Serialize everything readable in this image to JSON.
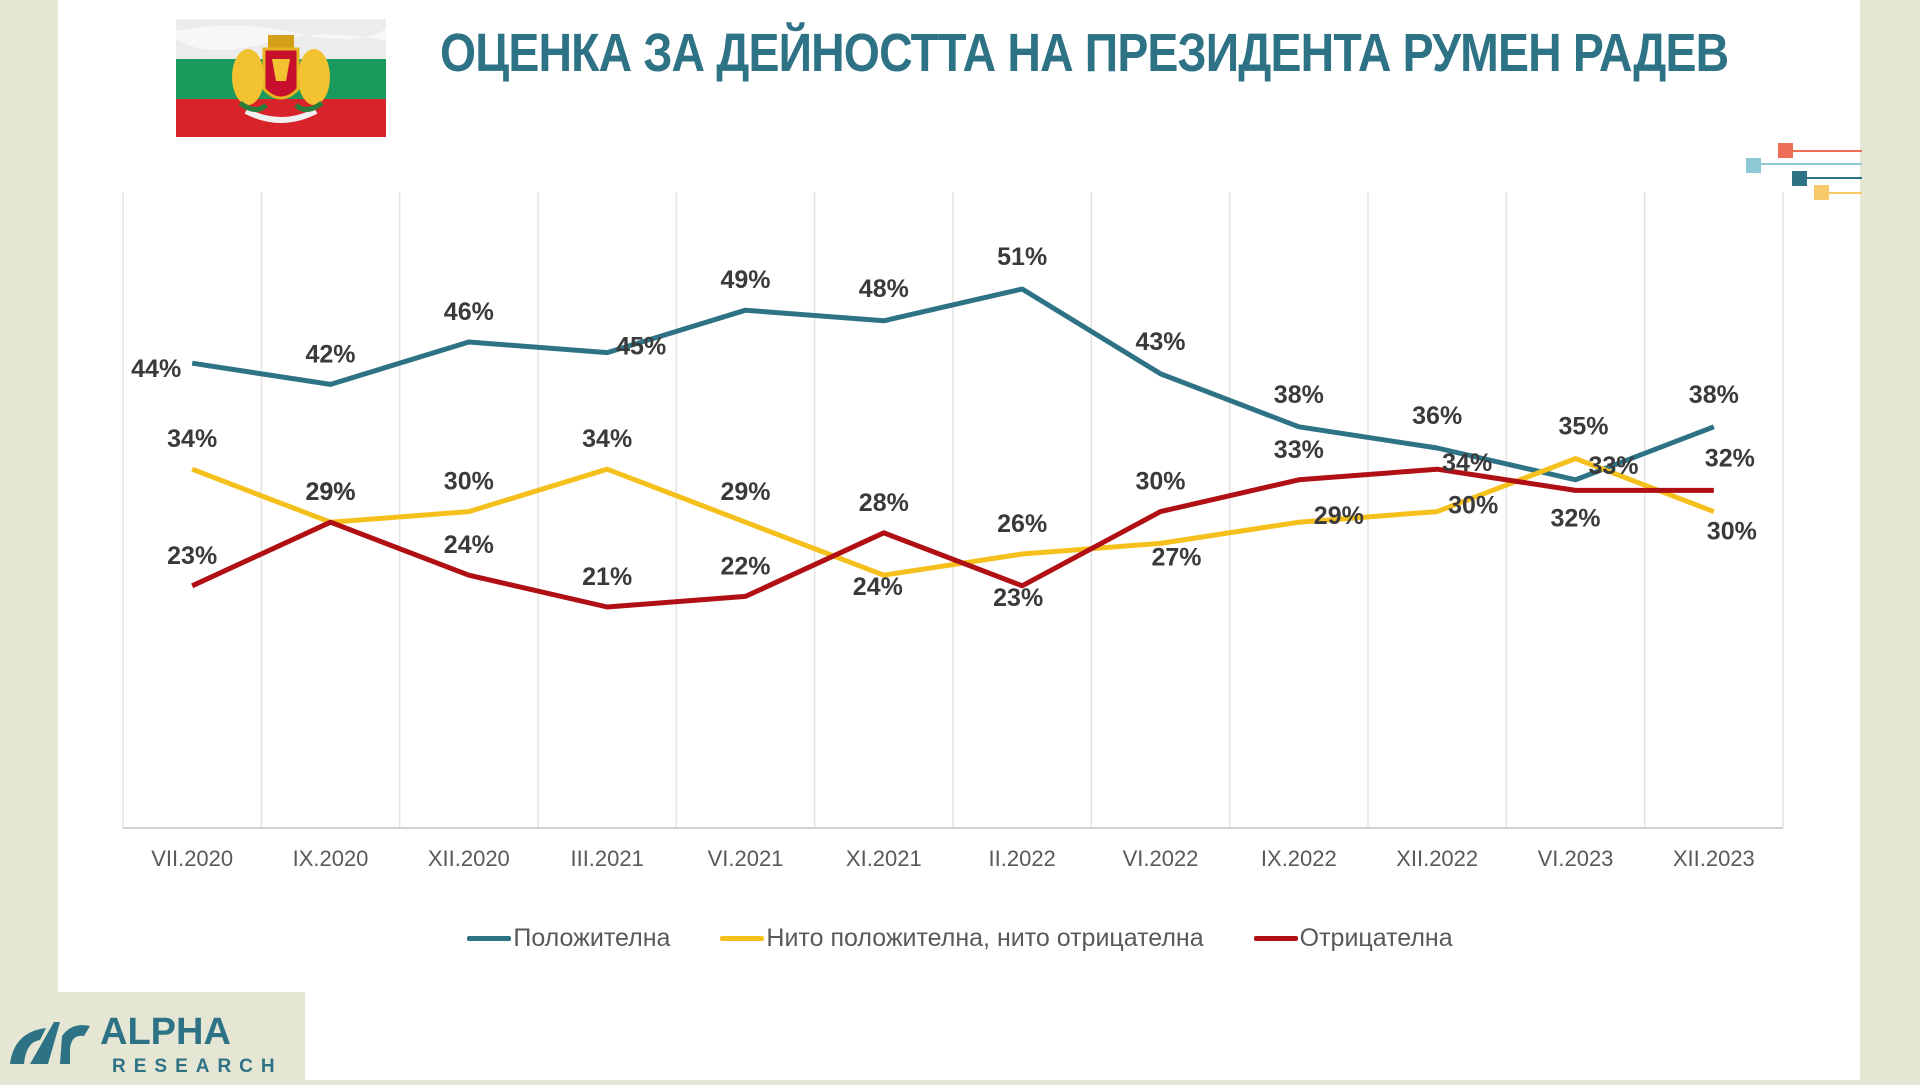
{
  "slide": {
    "title": "ОЦЕНКА ЗА ДЕЙНОСТТА НА ПРЕЗИДЕНТА РУМЕН РАДЕВ",
    "flag_icon": "bulgarian-flag-with-coat-of-arms",
    "logo": {
      "name": "ALPHA",
      "sub": "RESEARCH",
      "mark": "ar"
    },
    "colors": {
      "title": "#2e7385",
      "background": "#e6e6d4",
      "positive": "#2e7385",
      "neutral": "#f5c01c",
      "negative": "#b00f14",
      "deco": [
        "#ec6e57",
        "#8ec9d6",
        "#2e7385",
        "#f7c96b"
      ]
    }
  },
  "chart_data": {
    "type": "line",
    "title": "ОЦЕНКА ЗА ДЕЙНОСТТА НА ПРЕЗИДЕНТА РУМЕН РАДЕВ",
    "xlabel": "",
    "ylabel": "",
    "ylim": [
      0,
      60
    ],
    "grid": "vertical",
    "legend_position": "bottom",
    "categories": [
      "VII.2020",
      "IX.2020",
      "XII.2020",
      "III.2021",
      "VI.2021",
      "XI.2021",
      "II.2022",
      "VI.2022",
      "IX.2022",
      "XII.2022",
      "VI.2023",
      "XII.2023"
    ],
    "series": [
      {
        "name": "Положителна",
        "color": "#2e7385",
        "values": [
          44,
          42,
          46,
          45,
          49,
          48,
          51,
          43,
          38,
          36,
          33,
          38
        ],
        "labels": [
          "44%",
          "42%",
          "46%",
          "45%",
          "49%",
          "48%",
          "51%",
          "43%",
          "38%",
          "36%",
          "33%",
          "38%"
        ]
      },
      {
        "name": "Нито положителна, нито отрицателна",
        "color": "#f5c01c",
        "values": [
          34,
          29,
          30,
          34,
          29,
          24,
          26,
          27,
          29,
          30,
          35,
          30
        ],
        "labels": [
          "34%",
          "29%",
          "30%",
          "34%",
          "29%",
          "24%",
          "26%",
          "27%",
          "29%",
          "30%",
          "35%",
          "30%"
        ]
      },
      {
        "name": "Отрицателна",
        "color": "#b00f14",
        "values": [
          23,
          29,
          24,
          21,
          22,
          28,
          23,
          30,
          33,
          34,
          32,
          32
        ],
        "labels": [
          "23%",
          "29%",
          "24%",
          "21%",
          "22%",
          "28%",
          "23%",
          "30%",
          "33%",
          "34%",
          "32%",
          "32%"
        ]
      }
    ]
  }
}
